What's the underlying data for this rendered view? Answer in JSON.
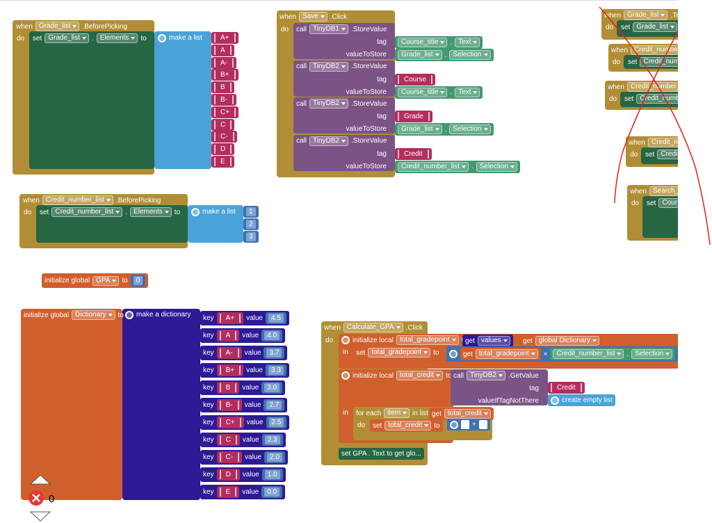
{
  "blocks": {
    "grade_event": {
      "when": "when",
      "component": "Grade_list",
      "event": ".BeforePicking",
      "do": "do",
      "set": "set",
      "target": "Grade_list",
      "dot": ".",
      "property": "Elements",
      "to": "to",
      "list": "make a list",
      "items": [
        "A+",
        "A",
        "A-",
        "B+",
        "B",
        "B-",
        "C+",
        "C",
        "C-",
        "D",
        "E"
      ]
    },
    "credit_event": {
      "when": "when",
      "component": "Credit_number_list",
      "event": ".BeforePicking",
      "do": "do",
      "set": "set",
      "target": "Credit_number_list",
      "dot": ".",
      "property": "Elements",
      "to": "to",
      "list": "make a list",
      "items": [
        "1",
        "2",
        "3"
      ]
    },
    "save_event": {
      "when": "when",
      "component": "Save",
      "event": ".Click",
      "do": "do",
      "calls": [
        {
          "call": "call",
          "db": "TinyDB1",
          "method": ".StoreValue",
          "tag_label": "tag",
          "tag": {
            "component": "Course_title",
            "dot": ".",
            "property": "Text"
          },
          "value_label": "valueToStore",
          "value": {
            "component": "Grade_list",
            "dot": ".",
            "property": "Selection"
          }
        },
        {
          "call": "call",
          "db": "TinyDB2",
          "method": ".StoreValue",
          "tag_label": "tag",
          "tag": {
            "text": "Course"
          },
          "value_label": "valueToStore",
          "value": {
            "component": "Course_title",
            "dot": ".",
            "property": "Text"
          }
        },
        {
          "call": "call",
          "db": "TinyDB2",
          "method": ".StoreValue",
          "tag_label": "tag",
          "tag": {
            "text": "Grade"
          },
          "value_label": "valueToStore",
          "value": {
            "component": "Grade_list",
            "dot": ".",
            "property": "Selection"
          }
        },
        {
          "call": "call",
          "db": "TinyDB2",
          "method": ".StoreValue",
          "tag_label": "tag",
          "tag": {
            "text": "Credit"
          },
          "value_label": "valueToStore",
          "value": {
            "component": "Credit_number_list",
            "dot": ".",
            "property": "Selection"
          }
        }
      ]
    },
    "gpa_global": {
      "init": "initialize global",
      "name": "GPA",
      "to": "to",
      "value": "0"
    },
    "dictionary_global": {
      "init": "initialize global",
      "name": "Dictionary",
      "to": "to",
      "make": "make a dictionary",
      "pairs": [
        {
          "key_label": "key",
          "key": "A+",
          "value_label": "value",
          "value": "4.5"
        },
        {
          "key_label": "key",
          "key": "A",
          "value_label": "value",
          "value": "4.0"
        },
        {
          "key_label": "key",
          "key": "A-",
          "value_label": "value",
          "value": "3.7"
        },
        {
          "key_label": "key",
          "key": "B+",
          "value_label": "value",
          "value": "3.3"
        },
        {
          "key_label": "key",
          "key": "B",
          "value_label": "value",
          "value": "3.0"
        },
        {
          "key_label": "key",
          "key": "B-",
          "value_label": "value",
          "value": "2.7"
        },
        {
          "key_label": "key",
          "key": "C+",
          "value_label": "value",
          "value": "2.5"
        },
        {
          "key_label": "key",
          "key": "C",
          "value_label": "value",
          "value": "2.3"
        },
        {
          "key_label": "key",
          "key": "C-",
          "value_label": "value",
          "value": "2.0"
        },
        {
          "key_label": "key",
          "key": "D",
          "value_label": "value",
          "value": "1.0"
        },
        {
          "key_label": "key",
          "key": "E",
          "value_label": "value",
          "value": "0.0"
        }
      ]
    },
    "calculate_event": {
      "when": "when",
      "component": "Calculate_GPA",
      "event": ".Click",
      "do": "do",
      "local1": {
        "init": "initialize local",
        "name": "total_gradepoint",
        "to": "to",
        "get": "get",
        "values": "values",
        "get2": "get",
        "dict": "global Dictionary",
        "in": "in",
        "set": "set",
        "target": "total_gradepoint",
        "to2": "to",
        "get3": "get",
        "operand": "total_gradepoint",
        "times": "×",
        "getter": {
          "component": "Credit_number_list",
          "dot": ".",
          "property": "Selection"
        }
      },
      "local2": {
        "init": "initialize local",
        "name": "total_credit",
        "to": "to",
        "call": "call",
        "db": "TinyDB2",
        "method": ".GetValue",
        "tag_label": "tag",
        "tag": "Credit",
        "default_label": "valueIfTagNotThere",
        "default": "create empty list",
        "in": "in",
        "for_each": "for each",
        "item": "item",
        "in_list": "in list",
        "get": "get",
        "list": "total_credit",
        "do": "do",
        "set": "set",
        "target": "total_credit",
        "to2": "to",
        "plus": "+"
      },
      "final": "set GPA . Text to get glo..."
    },
    "crossed_out": [
      {
        "when": "when",
        "component": "Grade_list",
        "event": ".To",
        "do": "do",
        "set": "set",
        "target": "Grade_list"
      },
      {
        "when": "when",
        "component": "Credit_number",
        "do": "do",
        "set": "set",
        "target": "Credit_num"
      },
      {
        "when": "when",
        "component": "Credit_number_",
        "do": "do",
        "set": "set",
        "target": "Credit_numb"
      },
      {
        "when": "when",
        "component": "Credit_n",
        "do": "do",
        "set": "set",
        "target": "Credi"
      },
      {
        "when": "when",
        "component": "Search_",
        "do": "do",
        "set": "set",
        "target": "Cour"
      }
    ]
  },
  "warnings": {
    "count": "0"
  }
}
